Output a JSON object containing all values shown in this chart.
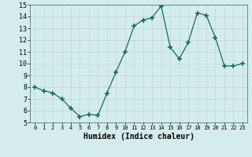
{
  "x": [
    0,
    1,
    2,
    3,
    4,
    5,
    6,
    7,
    8,
    9,
    10,
    11,
    12,
    13,
    14,
    15,
    16,
    17,
    18,
    19,
    20,
    21,
    22,
    23
  ],
  "y": [
    8.0,
    7.7,
    7.5,
    7.0,
    6.2,
    5.5,
    5.7,
    5.6,
    7.5,
    9.3,
    11.0,
    13.2,
    13.7,
    13.9,
    14.9,
    11.4,
    10.4,
    11.8,
    14.3,
    14.1,
    12.2,
    9.8,
    9.8,
    10.0
  ],
  "xlabel": "Humidex (Indice chaleur)",
  "xlim": [
    -0.5,
    23.5
  ],
  "ylim": [
    5,
    15
  ],
  "yticks": [
    5,
    6,
    7,
    8,
    9,
    10,
    11,
    12,
    13,
    14,
    15
  ],
  "xticks": [
    0,
    1,
    2,
    3,
    4,
    5,
    6,
    7,
    8,
    9,
    10,
    11,
    12,
    13,
    14,
    15,
    16,
    17,
    18,
    19,
    20,
    21,
    22,
    23
  ],
  "xtick_labels": [
    "0",
    "1",
    "2",
    "3",
    "4",
    "5",
    "6",
    "7",
    "8",
    "9",
    "10",
    "11",
    "12",
    "13",
    "14",
    "15",
    "16",
    "17",
    "18",
    "19",
    "20",
    "21",
    "22",
    "23"
  ],
  "line_color": "#1a6b5a",
  "marker": "+",
  "marker_size": 4,
  "bg_color": "#d4ecec",
  "grid_color": "#b8d8d8",
  "xlabel_fontsize": 7,
  "tick_fontsize_x": 5,
  "tick_fontsize_y": 6
}
